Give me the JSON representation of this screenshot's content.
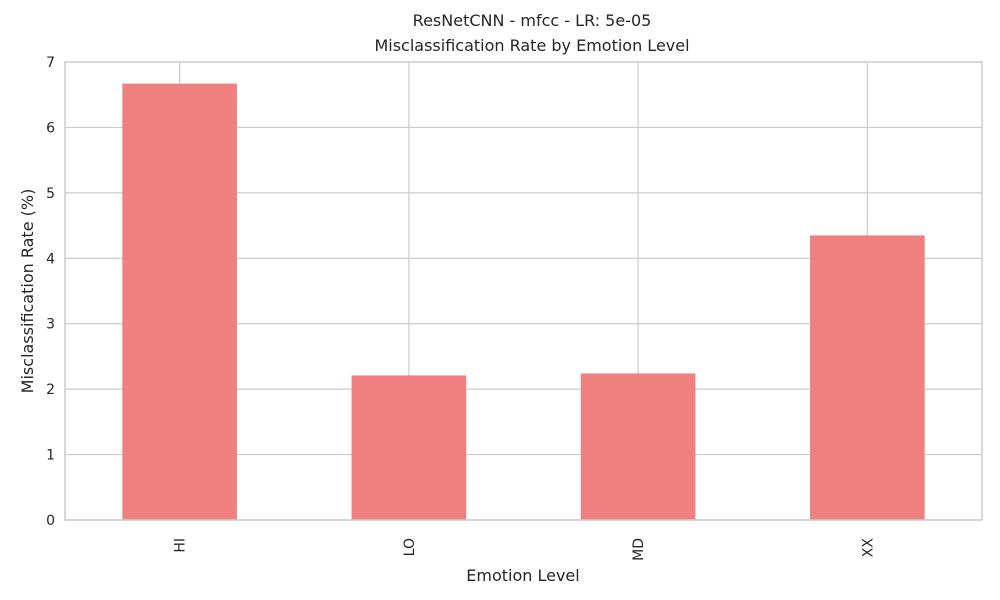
{
  "chart_data": {
    "type": "bar",
    "title_line1": "ResNetCNN - mfcc - LR: 5e-05",
    "title_line2": "Misclassification Rate by Emotion Level",
    "xlabel": "Emotion Level",
    "ylabel": "Misclassification Rate (%)",
    "categories": [
      "HI",
      "LO",
      "MD",
      "XX"
    ],
    "values": [
      6.67,
      2.21,
      2.24,
      4.35
    ],
    "ylim": [
      0,
      7
    ],
    "yticks": [
      "0",
      "1",
      "2",
      "3",
      "4",
      "5",
      "6",
      "7"
    ],
    "grid": true,
    "bar_color": "#f08080",
    "grid_color": "#cccccc",
    "spine_color": "#cccccc"
  }
}
